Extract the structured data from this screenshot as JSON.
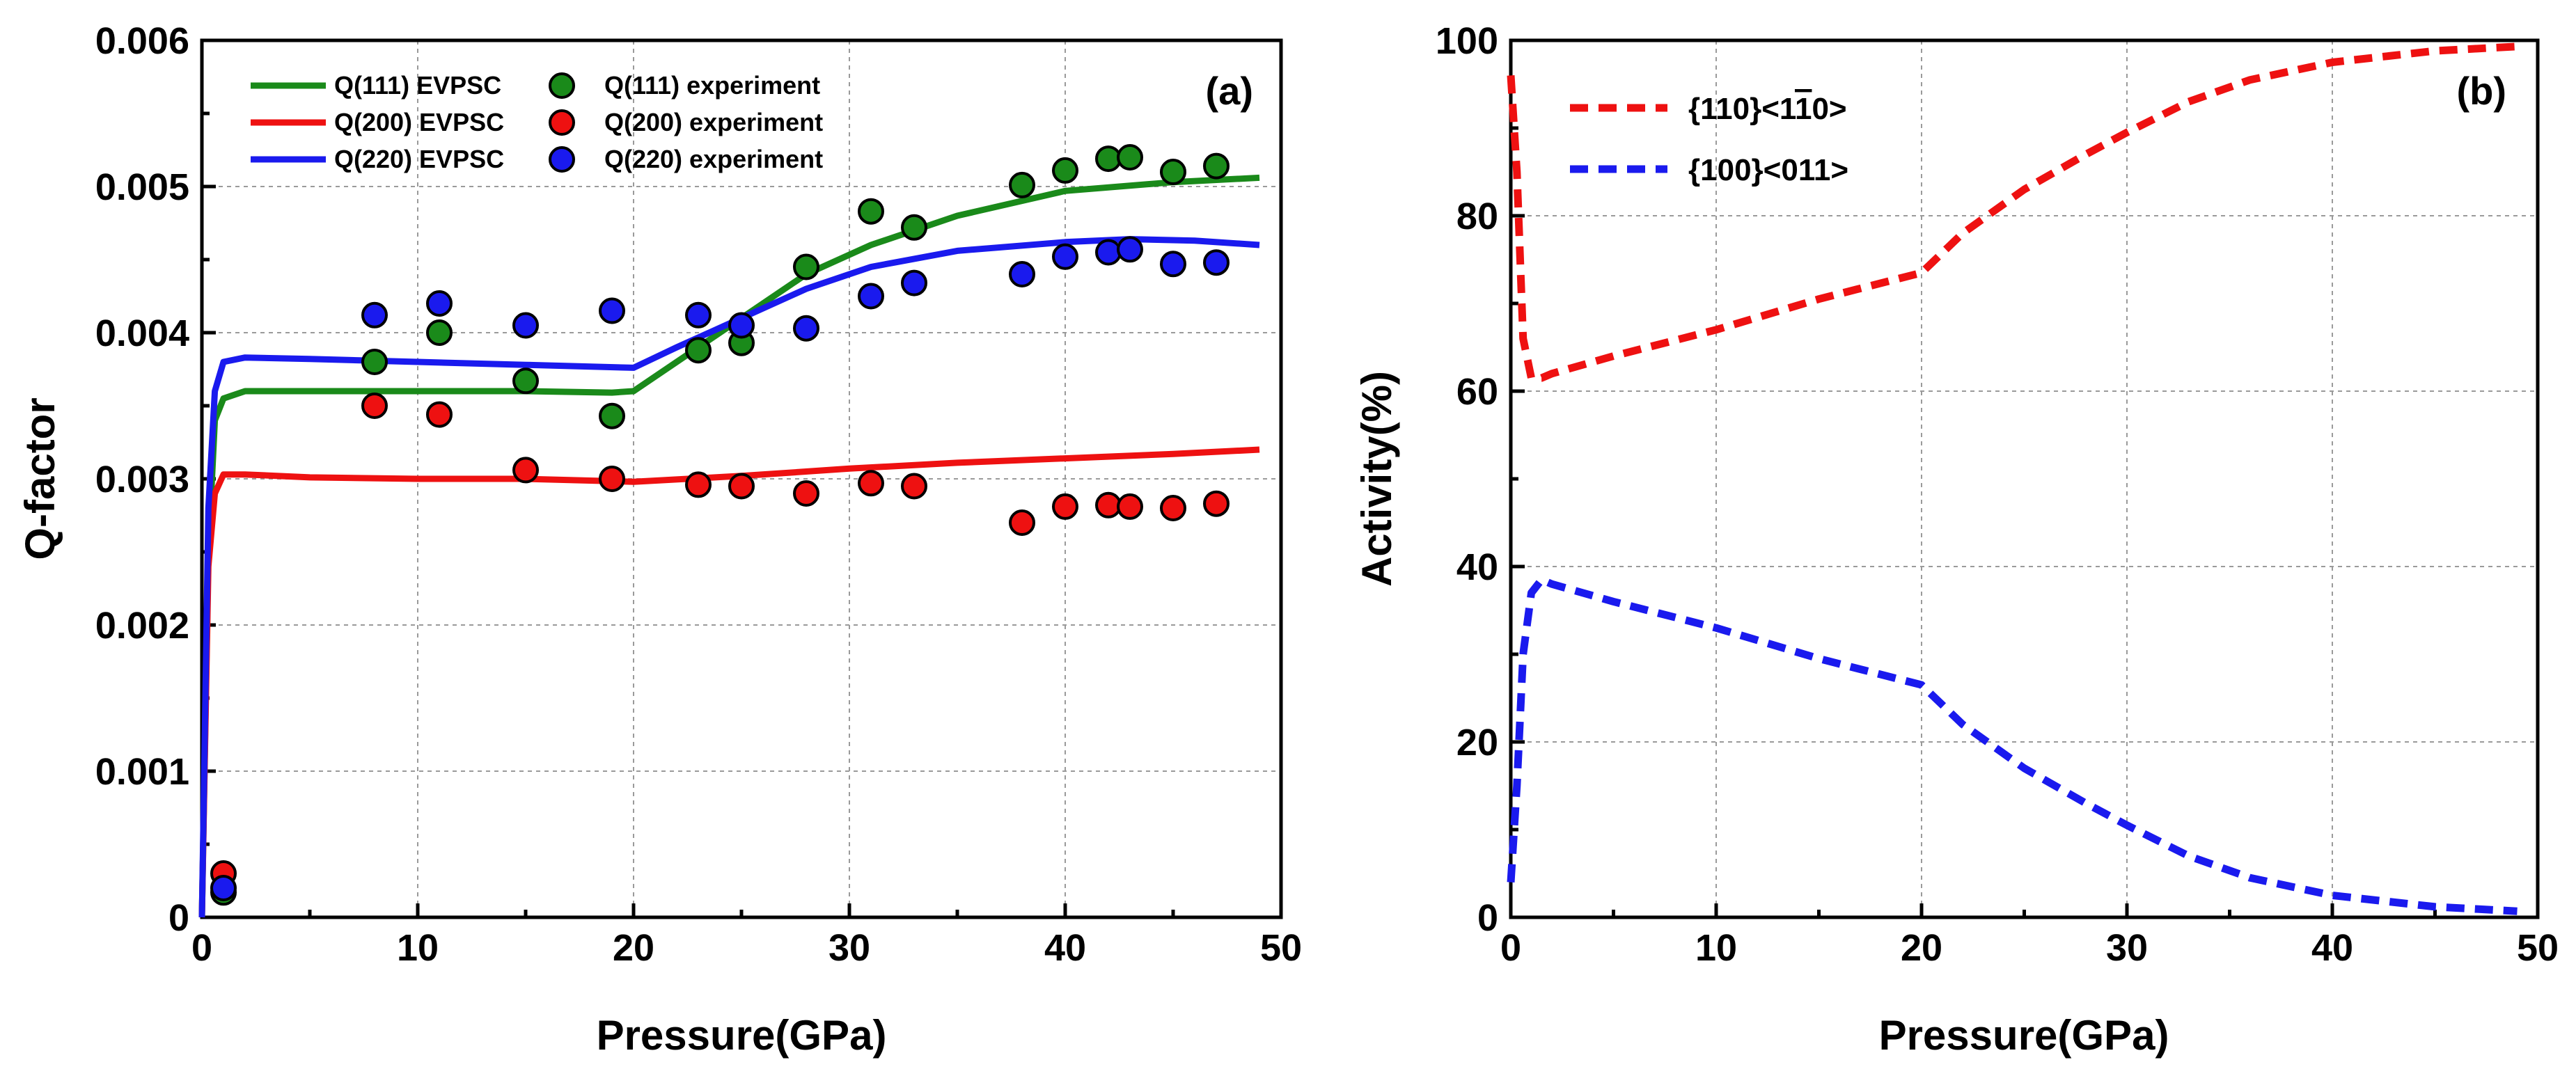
{
  "chart_data": [
    {
      "type": "line+scatter",
      "panel_label": "(a)",
      "xlabel": "Pressure(GPa)",
      "ylabel": "Q-factor",
      "xlim": [
        0,
        50
      ],
      "ylim": [
        0,
        0.006
      ],
      "xticks": [
        "0",
        "10",
        "20",
        "30",
        "40",
        "50"
      ],
      "yticks": [
        "0",
        "0.001",
        "0.002",
        "0.003",
        "0.004",
        "0.005",
        "0.006"
      ],
      "grid": true,
      "legend_position": "top-left",
      "colors": {
        "green": "#1a8a1a",
        "red": "#ee1111",
        "blue": "#1a1aee"
      },
      "lines": [
        {
          "name": "Q(111) EVPSC",
          "color": "#1a8a1a",
          "x": [
            0,
            0.3,
            0.6,
            1,
            2,
            5,
            10,
            15,
            19,
            20,
            22,
            25,
            28,
            31,
            35,
            40,
            45,
            49
          ],
          "y": [
            0,
            0.0025,
            0.0034,
            0.00355,
            0.0036,
            0.0036,
            0.0036,
            0.0036,
            0.00359,
            0.0036,
            0.0038,
            0.0041,
            0.0044,
            0.0046,
            0.0048,
            0.00497,
            0.00503,
            0.00506
          ]
        },
        {
          "name": "Q(200) EVPSC",
          "color": "#ee1111",
          "x": [
            0,
            0.3,
            0.6,
            1,
            2,
            5,
            10,
            15,
            20,
            25,
            30,
            35,
            40,
            45,
            49
          ],
          "y": [
            0,
            0.0024,
            0.0029,
            0.00303,
            0.00303,
            0.00301,
            0.003,
            0.003,
            0.00298,
            0.00302,
            0.00307,
            0.00311,
            0.00314,
            0.00317,
            0.0032
          ]
        },
        {
          "name": "Q(220) EVPSC",
          "color": "#1a1aee",
          "x": [
            0,
            0.3,
            0.6,
            1,
            2,
            5,
            10,
            15,
            20,
            22,
            25,
            28,
            31,
            35,
            40,
            43,
            46,
            49
          ],
          "y": [
            0,
            0.0028,
            0.0036,
            0.0038,
            0.00383,
            0.00382,
            0.0038,
            0.00378,
            0.00376,
            0.0039,
            0.0041,
            0.0043,
            0.00445,
            0.00456,
            0.00462,
            0.00464,
            0.00463,
            0.0046
          ]
        }
      ],
      "series": [
        {
          "name": "Q(111) experiment",
          "color": "#1a8a1a",
          "x": [
            1,
            8,
            11,
            15,
            19,
            23,
            25,
            28,
            31,
            33,
            38,
            40,
            42,
            43,
            45,
            47
          ],
          "y": [
            0.00017,
            0.0038,
            0.004,
            0.00367,
            0.00343,
            0.00388,
            0.00393,
            0.00445,
            0.00483,
            0.00472,
            0.00501,
            0.00511,
            0.00519,
            0.0052,
            0.0051,
            0.00514
          ]
        },
        {
          "name": "Q(200) experiment",
          "color": "#ee1111",
          "x": [
            1,
            8,
            11,
            15,
            19,
            23,
            25,
            28,
            31,
            33,
            38,
            40,
            42,
            43,
            45,
            47
          ],
          "y": [
            0.0003,
            0.0035,
            0.00344,
            0.00306,
            0.003,
            0.00296,
            0.00295,
            0.0029,
            0.00297,
            0.00295,
            0.0027,
            0.00281,
            0.00282,
            0.00281,
            0.0028,
            0.00283
          ]
        },
        {
          "name": "Q(220) experiment",
          "color": "#1a1aee",
          "x": [
            1,
            8,
            11,
            15,
            19,
            23,
            25,
            28,
            31,
            33,
            38,
            40,
            42,
            43,
            45,
            47
          ],
          "y": [
            0.0002,
            0.00412,
            0.0042,
            0.00405,
            0.00415,
            0.00412,
            0.00405,
            0.00403,
            0.00425,
            0.00434,
            0.0044,
            0.00452,
            0.00455,
            0.00457,
            0.00447,
            0.00448
          ]
        }
      ]
    },
    {
      "type": "line",
      "panel_label": "(b)",
      "xlabel": "Pressure(GPa)",
      "ylabel": "Activity(%)",
      "xlim": [
        0,
        50
      ],
      "ylim": [
        0,
        100
      ],
      "xticks": [
        "0",
        "10",
        "20",
        "30",
        "40",
        "50"
      ],
      "yticks": [
        "0",
        "20",
        "40",
        "60",
        "80",
        "100"
      ],
      "grid": true,
      "legend_position": "top-left",
      "lines": [
        {
          "name": "{110}<1",
          "name_bar": "1",
          "name_rest": "0>",
          "color": "#ee1111",
          "dashed": true,
          "x": [
            0,
            0.3,
            0.6,
            1,
            1.5,
            2,
            5,
            10,
            15,
            20,
            22,
            25,
            28,
            30,
            33,
            36,
            40,
            45,
            49
          ],
          "y": [
            96,
            85,
            66,
            61.5,
            61.5,
            62,
            64,
            67,
            70.5,
            73.5,
            78,
            83,
            87,
            89.5,
            93,
            95.5,
            97.5,
            98.8,
            99.3
          ]
        },
        {
          "name": "{100}<011>",
          "color": "#1a1aee",
          "dashed": true,
          "x": [
            0,
            0.3,
            0.6,
            1,
            1.5,
            2,
            5,
            10,
            15,
            20,
            22,
            25,
            28,
            30,
            33,
            36,
            40,
            45,
            49
          ],
          "y": [
            4,
            15,
            30,
            37,
            38.5,
            38,
            36,
            33,
            29.5,
            26.5,
            22,
            17,
            13,
            10.5,
            7,
            4.5,
            2.5,
            1.2,
            0.7
          ]
        }
      ]
    }
  ]
}
